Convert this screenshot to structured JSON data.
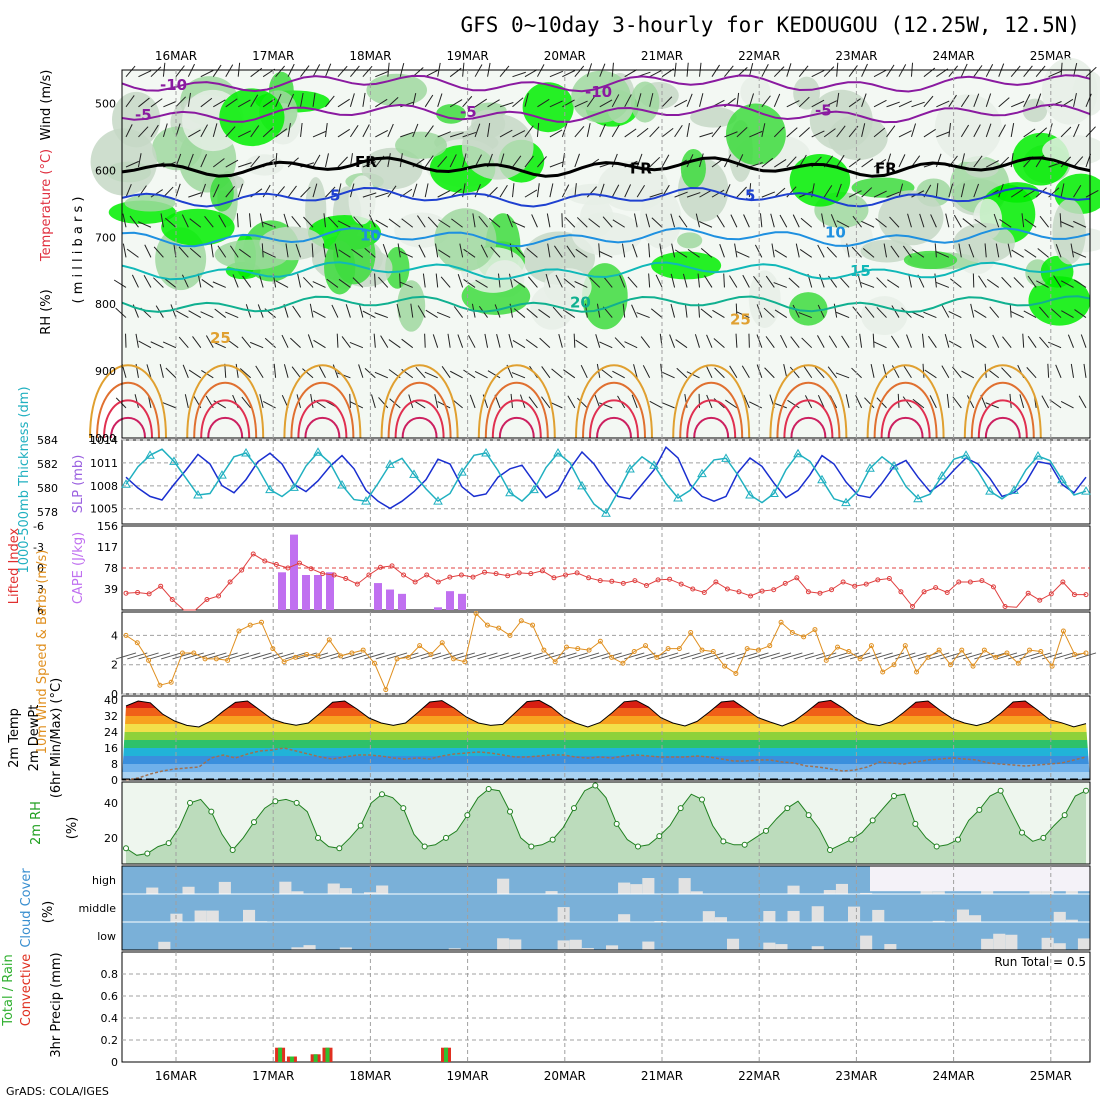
{
  "title": "GFS 0~10day 3-hourly for KEDOUGOU (12.25W, 12.5N)",
  "credit": "GrADS: COLA/IGES",
  "dates": [
    "16MAR",
    "17MAR",
    "18MAR",
    "19MAR",
    "20MAR",
    "21MAR",
    "22MAR",
    "23MAR",
    "24MAR",
    "25MAR"
  ],
  "chart_data": [
    {
      "type": "heatmap",
      "panel": "upper-air",
      "ylabels": [
        "Wind (m/s)",
        "Temperature (°C)",
        "RH (%)",
        "( m i l l i b a r s )"
      ],
      "yticks": [
        500,
        600,
        700,
        800,
        900,
        1000
      ],
      "ylim": [
        450,
        1000
      ],
      "rh_levels": [
        50,
        70,
        80,
        90
      ],
      "rh_colors": [
        "#e6efe6",
        "#c6d8c6",
        "#9fd89f",
        "#3ddc3d",
        "#00ee00"
      ],
      "isotherm_labels": [
        {
          "text": "-10",
          "color": "#8a1aa0"
        },
        {
          "text": "-10",
          "color": "#8a1aa0"
        },
        {
          "text": "-5",
          "color": "#8a1aa0"
        },
        {
          "text": "-5",
          "color": "#8a1aa0"
        },
        {
          "text": "-5",
          "color": "#8a1aa0"
        },
        {
          "text": "FR",
          "color": "#000000"
        },
        {
          "text": "FR",
          "color": "#000000"
        },
        {
          "text": "FR",
          "color": "#000000"
        },
        {
          "text": "5",
          "color": "#1e40d0"
        },
        {
          "text": "5",
          "color": "#1e40d0"
        },
        {
          "text": "10",
          "color": "#1e90e0"
        },
        {
          "text": "10",
          "color": "#1e90e0"
        },
        {
          "text": "15",
          "color": "#10b8b8"
        },
        {
          "text": "20",
          "color": "#10b090"
        },
        {
          "text": "25",
          "color": "#e0a030"
        },
        {
          "text": "25",
          "color": "#e0a030"
        }
      ]
    },
    {
      "type": "line",
      "panel": "thickness-slp",
      "ylabels": [
        "1000-500mb Thickness (dm)",
        "SLP (mb)"
      ],
      "yticks_left": [
        578,
        580,
        582,
        584
      ],
      "yticks_right": [
        1005,
        1008,
        1011,
        1014
      ],
      "ylim_left": [
        577,
        584
      ],
      "ylim_right": [
        1003,
        1014
      ],
      "series": [
        {
          "name": "1000-500mb Thickness (dm)",
          "color": "#1a2fd0",
          "axis": "left",
          "values": [
            580.9,
            580.0,
            579.3,
            579.0,
            580.3,
            581.5,
            582.8,
            582.0,
            580.2,
            579.6,
            580.7,
            582.2,
            582.9,
            582.0,
            580.3,
            579.7,
            580.6,
            581.8,
            582.7,
            581.6,
            579.8,
            578.9,
            578.3,
            578.9,
            579.7,
            580.7,
            582.4,
            582.0,
            580.1,
            579.3,
            579.5,
            580.9,
            581.6,
            581.9,
            580.5,
            579.2,
            579.8,
            581.6,
            583.0,
            582.0,
            580.5,
            579.3,
            579.1,
            580.3,
            581.5,
            583.4,
            582.5,
            580.3,
            579.3,
            578.9,
            579.3,
            581.3,
            582.5,
            581.8,
            580.4,
            579.2,
            579.8,
            581.1,
            582.7,
            582.0,
            580.5,
            579.4,
            579.2,
            580.4,
            581.8,
            582.3,
            580.9,
            579.7,
            580.4,
            581.5,
            582.5,
            582.0,
            580.8,
            579.3,
            579.6,
            580.5,
            582.2,
            582.0,
            580.3,
            579.6,
            580.9
          ]
        },
        {
          "name": "SLP (mb)",
          "color": "#20b0c0",
          "axis": "right",
          "values": [
            1008.2,
            1010.5,
            1012.0,
            1012.8,
            1011.2,
            1009.0,
            1006.8,
            1007.0,
            1009.4,
            1011.8,
            1012.3,
            1010.3,
            1007.5,
            1006.6,
            1007.8,
            1010.6,
            1012.4,
            1011.0,
            1008.1,
            1006.2,
            1006.0,
            1008.3,
            1010.8,
            1011.6,
            1009.5,
            1007.6,
            1006.0,
            1007.0,
            1009.8,
            1012.0,
            1012.3,
            1010.0,
            1007.1,
            1006.0,
            1007.5,
            1010.4,
            1012.3,
            1011.0,
            1008.0,
            1005.6,
            1004.4,
            1007.2,
            1010.2,
            1011.8,
            1010.7,
            1008.3,
            1006.4,
            1007.4,
            1009.6,
            1011.4,
            1011.6,
            1009.4,
            1006.8,
            1005.8,
            1007.0,
            1010.1,
            1012.2,
            1011.2,
            1008.8,
            1006.3,
            1005.8,
            1007.3,
            1010.3,
            1011.8,
            1010.6,
            1007.9,
            1006.3,
            1006.9,
            1009.3,
            1011.5,
            1012.0,
            1009.9,
            1007.3,
            1006.3,
            1007.4,
            1010.1,
            1011.9,
            1011.3,
            1008.8,
            1006.8,
            1007.3
          ]
        }
      ]
    },
    {
      "type": "bar",
      "panel": "instability",
      "ylabels": [
        "Lifted Index",
        "CAPE (J/kg)"
      ],
      "yticks_left": [
        "-6",
        "-3",
        "0",
        "3",
        "6"
      ],
      "yticks_right": [
        39,
        78,
        117,
        156
      ],
      "ylim_left": [
        -6,
        6
      ],
      "ylim_right": [
        0,
        156
      ],
      "series": [
        {
          "name": "CAPE (J/kg)",
          "color": "#c070f0",
          "type": "bar",
          "values": [
            0,
            0,
            0,
            0,
            0,
            0,
            0,
            0,
            0,
            0,
            0,
            0,
            0,
            70,
            140,
            65,
            65,
            70,
            0,
            0,
            0,
            50,
            38,
            30,
            0,
            0,
            5,
            35,
            30,
            0,
            0,
            0,
            0,
            0,
            0,
            0,
            0,
            0,
            0,
            0,
            0,
            0,
            0,
            0,
            0,
            0,
            0,
            0,
            0,
            0,
            0,
            0,
            0,
            0,
            0,
            0,
            0,
            0,
            0,
            0,
            0,
            0,
            0,
            0,
            0,
            0,
            0,
            0,
            0,
            0,
            0,
            0,
            0,
            0,
            0,
            0,
            0,
            0,
            0,
            0,
            0
          ]
        },
        {
          "name": "Lifted Index",
          "color": "#e04040",
          "type": "line",
          "values": [
            3.6,
            3.5,
            3.7,
            2.6,
            4.5,
            6.5,
            6.5,
            4.5,
            4.0,
            2.0,
            0.3,
            -2.0,
            -1.0,
            -0.5,
            0.0,
            -0.7,
            0.1,
            0.8,
            1.0,
            1.5,
            2.3,
            1.0,
            -0.1,
            -0.3,
            1.0,
            2.0,
            1.0,
            2.0,
            1.3,
            1.0,
            1.3,
            0.6,
            0.8,
            1.1,
            0.7,
            0.8,
            0.4,
            1.4,
            1.0,
            0.7,
            1.4,
            1.8,
            1.9,
            2.2,
            1.8,
            2.5,
            1.7,
            1.6,
            2.3,
            3.0,
            3.5,
            2.0,
            3.0,
            3.4,
            4.0,
            3.3,
            3.1,
            2.2,
            1.4,
            3.4,
            3.6,
            3.1,
            2.0,
            2.6,
            2.3,
            1.7,
            1.5,
            3.4,
            5.5,
            3.4,
            2.8,
            3.5,
            2.0,
            2.0,
            1.8,
            2.7,
            5.5,
            5.6,
            3.6,
            4.6,
            3.7,
            2.0,
            3.8,
            3.8
          ]
        }
      ]
    },
    {
      "type": "line",
      "panel": "10m-wind",
      "ylabels": [
        "10m Wind Speed & Barbs (m/s)"
      ],
      "yticks": [
        0,
        2,
        4
      ],
      "ylim": [
        0,
        5.6
      ],
      "series": [
        {
          "name": "10m Wind Speed",
          "color": "#e09020",
          "values": [
            4.0,
            3.5,
            2.3,
            0.6,
            0.8,
            2.8,
            2.8,
            2.4,
            2.4,
            2.3,
            4.3,
            4.7,
            4.9,
            3.1,
            2.2,
            2.5,
            2.7,
            2.6,
            3.7,
            2.6,
            2.8,
            3.0,
            2.1,
            0.3,
            2.4,
            2.5,
            3.3,
            2.7,
            3.5,
            2.4,
            2.2,
            5.5,
            4.7,
            4.5,
            4.0,
            5.0,
            4.7,
            3.0,
            2.2,
            3.2,
            3.1,
            3.0,
            3.6,
            2.5,
            2.1,
            2.9,
            3.3,
            2.5,
            3.1,
            3.1,
            4.2,
            3.0,
            2.9,
            1.9,
            1.4,
            3.1,
            3.0,
            3.3,
            4.9,
            4.2,
            3.9,
            4.4,
            2.3,
            3.2,
            2.9,
            2.4,
            3.3,
            1.5,
            2.0,
            3.3,
            1.5,
            2.5,
            3.0,
            2.0,
            3.0,
            1.9,
            3.0,
            2.5,
            2.8,
            2.1,
            3.0,
            2.9,
            1.9,
            4.3,
            2.7,
            2.8
          ]
        }
      ]
    },
    {
      "type": "area",
      "panel": "2m-temp",
      "ylabels": [
        "2m Temp",
        "2m DewPt",
        "(6hr Min/Max) (°C)"
      ],
      "yticks": [
        0,
        8,
        16,
        24,
        32,
        40
      ],
      "ylim": [
        0,
        42
      ],
      "series": [
        {
          "name": "2m Temp",
          "color": "#000000",
          "values": [
            37.0,
            39.5,
            38.6,
            33.0,
            29.5,
            27.3,
            26.5,
            29.5,
            34.4,
            38.8,
            39.5,
            35.0,
            30.5,
            28.5,
            27.4,
            28.5,
            33.5,
            38.9,
            39.5,
            35.5,
            31.0,
            28.5,
            27.3,
            28.5,
            33.6,
            39.0,
            39.7,
            36.0,
            31.5,
            28.5,
            27.3,
            27.8,
            33.5,
            39.2,
            39.8,
            36.5,
            31.5,
            28.5,
            26.5,
            28.7,
            33.6,
            39.1,
            39.7,
            36.5,
            31.2,
            28.5,
            27.0,
            29.3,
            34.0,
            39.0,
            39.6,
            35.5,
            31.2,
            29.0,
            27.0,
            29.5,
            34.0,
            38.9,
            39.8,
            36.0,
            31.2,
            28.2,
            27.2,
            29.2,
            33.8,
            38.9,
            39.5,
            34.8,
            30.7,
            28.5,
            27.2,
            28.9,
            33.5,
            39.0,
            39.5,
            35.0,
            30.2,
            28.6,
            26.6,
            28.2
          ]
        },
        {
          "name": "2m DewPt",
          "color": "#a07050",
          "values": [
            0.0,
            1.0,
            3.0,
            4.5,
            5.5,
            6.0,
            6.5,
            11.0,
            12.5,
            11.0,
            13.0,
            14.5,
            15.0,
            16.0,
            14.5,
            13.0,
            11.5,
            10.5,
            11.5,
            12.5,
            12.5,
            12.0,
            11.0,
            10.5,
            11.0,
            10.5,
            12.0,
            13.0,
            13.5,
            14.0,
            13.5,
            12.5,
            11.5,
            11.5,
            12.0,
            12.5,
            12.5,
            11.5,
            11.0,
            11.5,
            11.0,
            12.0,
            12.5,
            12.0,
            11.5,
            11.5,
            11.5,
            12.0,
            11.5,
            10.5,
            9.5,
            9.5,
            10.0,
            10.0,
            9.0,
            8.5,
            7.0,
            6.5,
            5.5,
            4.5,
            5.0,
            6.5,
            9.0,
            8.5,
            8.0,
            9.0,
            10.0,
            10.5,
            11.0,
            10.5,
            10.0,
            8.5,
            8.0,
            7.5,
            7.0,
            7.5,
            8.0,
            8.5,
            10.0,
            11.5
          ]
        }
      ]
    },
    {
      "type": "area",
      "panel": "2m-rh",
      "ylabels": [
        "2m RH",
        "(%)"
      ],
      "yticks": [
        20,
        40
      ],
      "ylim": [
        5,
        52
      ],
      "series": [
        {
          "name": "2m RH",
          "color": "#208020",
          "values": [
            14,
            10,
            11,
            15,
            17,
            26,
            40,
            42,
            35,
            22,
            13,
            20,
            29,
            37,
            41,
            42,
            40,
            35,
            20,
            15,
            14,
            20,
            27,
            40,
            45,
            43,
            37,
            22,
            15,
            16,
            20,
            24,
            33,
            43,
            48,
            47,
            35,
            20,
            15,
            16,
            19,
            26,
            37,
            47,
            50,
            43,
            28,
            19,
            15,
            16,
            21,
            27,
            37,
            45,
            42,
            27,
            18,
            16,
            16,
            20,
            24,
            31,
            37,
            41,
            33,
            25,
            13,
            16,
            19,
            23,
            30,
            37,
            44,
            45,
            28,
            20,
            15,
            16,
            19,
            30,
            36,
            44,
            47,
            35,
            23,
            18,
            20,
            27,
            33,
            44,
            47
          ]
        }
      ]
    },
    {
      "type": "heatmap",
      "panel": "cloud-cover",
      "ylabels": [
        "Cloud Cover",
        "(%)"
      ],
      "rows": [
        "high",
        "middle",
        "low"
      ],
      "colors": {
        "clear": "#ffffff",
        "partial": "#e2e2e2",
        "cloudy": "#7ab0d8"
      }
    },
    {
      "type": "bar",
      "panel": "precip",
      "ylabels": [
        "Total / Rain",
        "Convective",
        "3hr Precip (mm)"
      ],
      "yticks": [
        0,
        0.2,
        0.4,
        0.6,
        0.8
      ],
      "ylim": [
        0,
        1.0
      ],
      "run_total": "Run Total = 0.5",
      "series": [
        {
          "name": "Total / Rain",
          "color": "#e03020",
          "values": [
            0,
            0,
            0,
            0,
            0,
            0,
            0,
            0,
            0,
            0,
            0,
            0,
            0,
            0.13,
            0.05,
            0,
            0.07,
            0.13,
            0,
            0,
            0,
            0,
            0,
            0,
            0,
            0,
            0,
            0.13,
            0,
            0,
            0,
            0,
            0,
            0,
            0,
            0,
            0,
            0,
            0,
            0,
            0,
            0,
            0,
            0,
            0,
            0,
            0,
            0,
            0,
            0,
            0,
            0,
            0,
            0,
            0,
            0,
            0,
            0,
            0,
            0,
            0,
            0,
            0,
            0,
            0,
            0,
            0,
            0,
            0,
            0,
            0,
            0,
            0,
            0,
            0,
            0,
            0,
            0,
            0,
            0,
            0,
            0
          ]
        },
        {
          "name": "Convective",
          "color": "#30c030",
          "values": [
            0,
            0,
            0,
            0,
            0,
            0,
            0,
            0,
            0,
            0,
            0,
            0,
            0,
            0.13,
            0.05,
            0,
            0.07,
            0.13,
            0,
            0,
            0,
            0,
            0,
            0,
            0,
            0,
            0,
            0.13,
            0,
            0,
            0,
            0,
            0,
            0,
            0,
            0,
            0,
            0,
            0,
            0,
            0,
            0,
            0,
            0,
            0,
            0,
            0,
            0,
            0,
            0,
            0,
            0,
            0,
            0,
            0,
            0,
            0,
            0,
            0,
            0,
            0,
            0,
            0,
            0,
            0,
            0,
            0,
            0,
            0,
            0,
            0,
            0,
            0,
            0,
            0,
            0,
            0,
            0,
            0,
            0,
            0,
            0
          ]
        }
      ]
    }
  ]
}
